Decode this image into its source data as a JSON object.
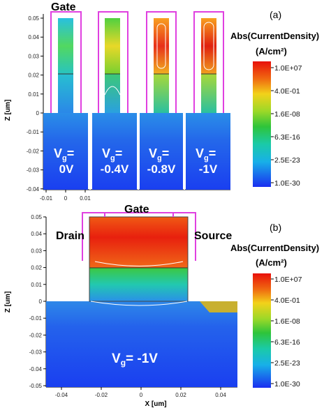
{
  "panel_a": {
    "tag": "(a)",
    "gate_label": "Gate",
    "y_axis_title": "Z [um]",
    "y_ticks": [
      "0.05",
      "0.04",
      "0.03",
      "0.02",
      "0.01",
      "0",
      "-0.01",
      "-0.02",
      "-0.03",
      "-0.04"
    ],
    "x_ticks": [
      "-0.01",
      "0",
      "0.01"
    ],
    "colorbar_title": "Abs(CurrentDensity)",
    "colorbar_unit": "(A/cm²)",
    "colorbar_ticks": [
      "1.0E+07",
      "4.0E-01",
      "1.6E-08",
      "6.3E-16",
      "2.5E-23",
      "1.0E-30"
    ],
    "voltages": [
      {
        "sym": "V",
        "sub": "g",
        "eq": "=",
        "value": "0V"
      },
      {
        "sym": "V",
        "sub": "g",
        "eq": "=",
        "value": "-0.4V"
      },
      {
        "sym": "V",
        "sub": "g",
        "eq": "=",
        "value": "-0.8V"
      },
      {
        "sym": "V",
        "sub": "g",
        "eq": "=",
        "value": "-1V"
      }
    ]
  },
  "panel_b": {
    "tag": "(b)",
    "gate_label": "Gate",
    "drain_label": "Drain",
    "source_label": "Source",
    "y_axis_title": "Z [um]",
    "x_axis_title": "X [um]",
    "y_ticks": [
      "0.05",
      "0.04",
      "0.03",
      "0.02",
      "0.01",
      "0",
      "-0.01",
      "-0.02",
      "-0.03",
      "-0.04",
      "-0.05"
    ],
    "x_ticks": [
      "-0.04",
      "-0.02",
      "0",
      "0.02",
      "0.04"
    ],
    "colorbar_title": "Abs(CurrentDensity)",
    "colorbar_unit": "(A/cm²)",
    "colorbar_ticks": [
      "1.0E+07",
      "4.0E-01",
      "1.6E-08",
      "6.3E-16",
      "2.5E-23",
      "1.0E-30"
    ],
    "voltage": {
      "sym": "V",
      "sub": "g",
      "eq": "= -1V"
    }
  },
  "colors": {
    "low": "#1a3ff0",
    "high": "#e8180c",
    "gate_outline": "#e040e0",
    "hatch": "#c8b030"
  }
}
